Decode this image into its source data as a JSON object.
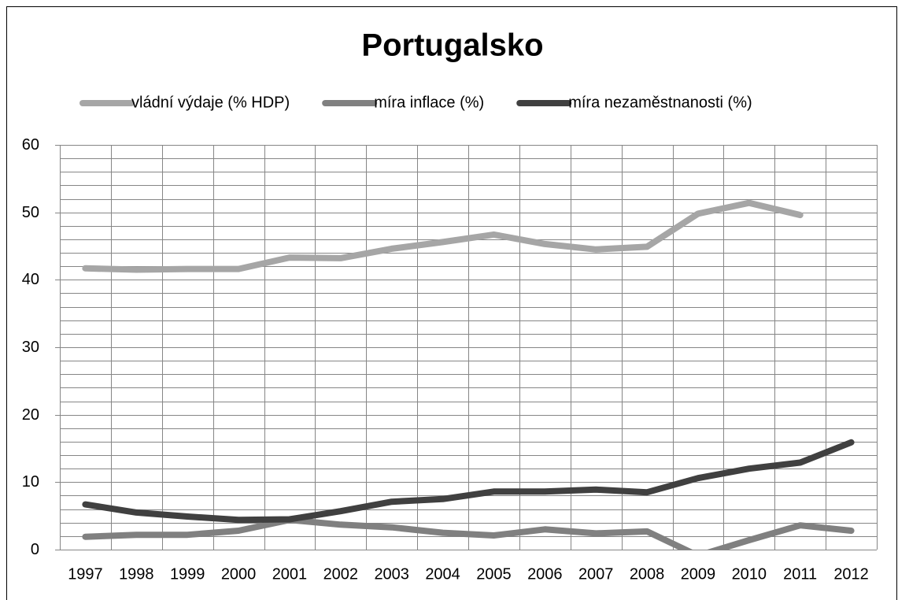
{
  "chart_data": {
    "type": "line",
    "title": "Portugalsko",
    "categories": [
      "1997",
      "1998",
      "1999",
      "2000",
      "2001",
      "2002",
      "2003",
      "2004",
      "2005",
      "2006",
      "2007",
      "2008",
      "2009",
      "2010",
      "2011",
      "2012"
    ],
    "series": [
      {
        "name": "vládní výdaje (% HDP)",
        "color": "#a6a6a6",
        "values": [
          41.7,
          41.5,
          41.6,
          41.6,
          43.3,
          43.2,
          44.6,
          45.6,
          46.7,
          45.3,
          44.5,
          44.9,
          49.8,
          51.4,
          49.6,
          null
        ]
      },
      {
        "name": "míra inflace (%)",
        "color": "#808080",
        "values": [
          1.9,
          2.2,
          2.2,
          2.8,
          4.4,
          3.7,
          3.3,
          2.5,
          2.1,
          3.0,
          2.4,
          2.7,
          -0.9,
          1.4,
          3.6,
          2.8
        ]
      },
      {
        "name": "míra nezaměstnanosti (%)",
        "color": "#404040",
        "values": [
          6.7,
          5.5,
          4.9,
          4.4,
          4.5,
          5.7,
          7.1,
          7.5,
          8.6,
          8.6,
          8.9,
          8.5,
          10.6,
          12.0,
          12.9,
          15.9
        ]
      }
    ],
    "ylim": [
      0,
      60
    ],
    "yticks": [
      0,
      10,
      20,
      30,
      40,
      50,
      60
    ],
    "minor_yticks": [
      2,
      4,
      6,
      8,
      12,
      14,
      16,
      18,
      22,
      24,
      26,
      28,
      32,
      34,
      36,
      38,
      42,
      44,
      46,
      48,
      52,
      54,
      56,
      58
    ],
    "grid": true,
    "legend": "top"
  }
}
